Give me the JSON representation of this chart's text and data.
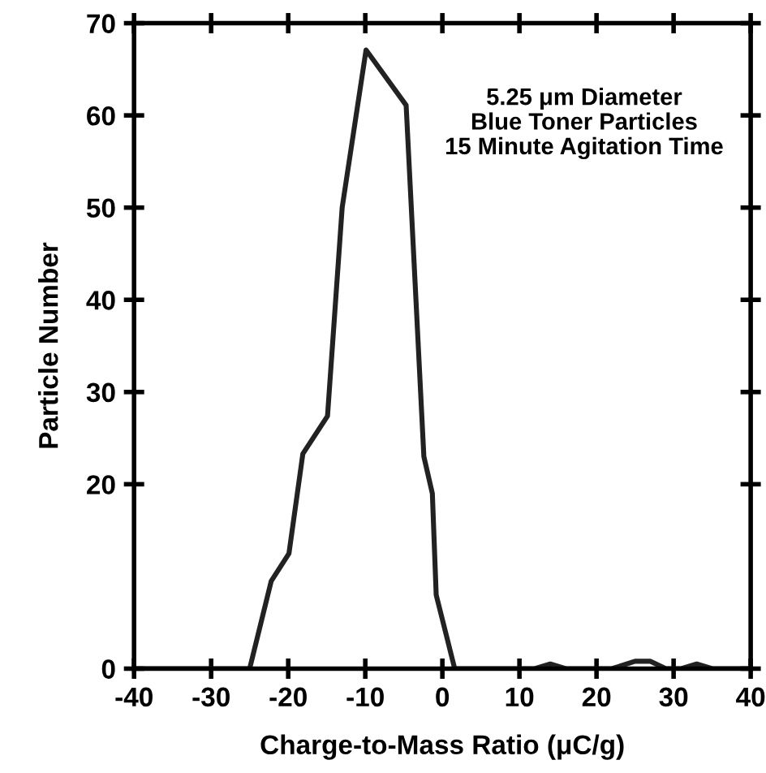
{
  "chart_data": {
    "type": "line",
    "xlabel": "Charge-to-Mass Ratio (μC/g)",
    "ylabel": "Particle Number",
    "annotations": [
      "5.25 μm Diameter\nBlue Toner Particles\n15 Minute Agitation Time"
    ],
    "x": [
      -40,
      -25,
      -22.2,
      -19.9,
      -18.1,
      -14.9,
      -13,
      -9.9,
      -4.7,
      -2.4,
      -1.3,
      -0.8,
      1.6,
      12,
      14,
      16,
      22,
      25,
      27,
      29,
      31,
      33,
      35,
      40
    ],
    "values": [
      0,
      0,
      9.5,
      12.5,
      23.3,
      27.4,
      50,
      67.1,
      61.1,
      23,
      19,
      8,
      0,
      0,
      0.5,
      0,
      0,
      0.8,
      0.8,
      0,
      0,
      0.5,
      0,
      0
    ],
    "color": "#222222",
    "xlim": [
      -40,
      40
    ],
    "xticks": [
      -40,
      -30,
      -20,
      -10,
      0,
      10,
      20,
      30,
      40
    ],
    "ylim": [
      0,
      70
    ],
    "yticks": [
      0,
      20,
      30,
      40,
      50,
      60,
      70
    ],
    "grid": false,
    "marker": "none",
    "line_style": "solid"
  }
}
